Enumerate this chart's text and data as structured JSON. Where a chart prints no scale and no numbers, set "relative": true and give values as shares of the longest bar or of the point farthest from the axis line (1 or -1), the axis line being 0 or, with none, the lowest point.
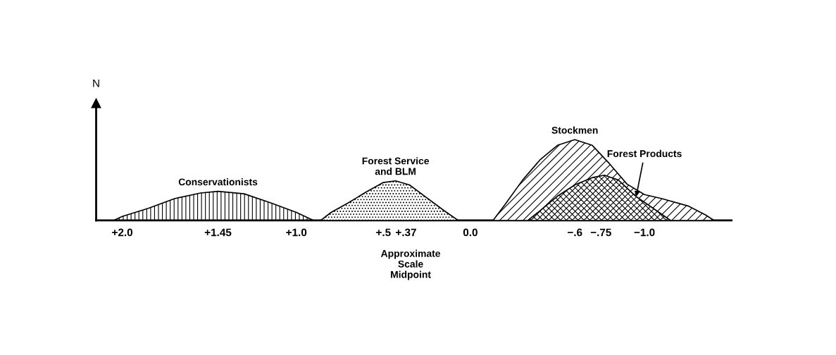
{
  "chart_data": {
    "type": "area",
    "relative": true,
    "ylabel": "N",
    "xlim": [
      2.15,
      -1.5
    ],
    "xticks": [
      {
        "value": 2.0,
        "label": "+2.0"
      },
      {
        "value": 1.45,
        "label": "+1.45"
      },
      {
        "value": 1.0,
        "label": "+1.0"
      },
      {
        "value": 0.5,
        "label": "+.5"
      },
      {
        "value": 0.37,
        "label": "+.37"
      },
      {
        "value": 0.0,
        "label": "0.0"
      },
      {
        "value": -0.6,
        "label": "−.6"
      },
      {
        "value": -0.75,
        "label": "−.75"
      },
      {
        "value": -1.0,
        "label": "−1.0"
      }
    ],
    "series": [
      {
        "name": "Conservationists",
        "color": "#000000",
        "x": [
          2.05,
          2.0,
          1.85,
          1.7,
          1.55,
          1.45,
          1.3,
          1.15,
          1.0,
          0.92,
          0.9
        ],
        "values": [
          0,
          0.05,
          0.15,
          0.27,
          0.34,
          0.36,
          0.33,
          0.22,
          0.1,
          0.02,
          0
        ]
      },
      {
        "name": "Forest Service\nand BLM",
        "color": "#000000",
        "x": [
          0.86,
          0.8,
          0.7,
          0.6,
          0.5,
          0.43,
          0.35,
          0.25,
          0.15,
          0.07
        ],
        "values": [
          0,
          0.1,
          0.22,
          0.35,
          0.47,
          0.49,
          0.44,
          0.28,
          0.12,
          0
        ]
      },
      {
        "name": "Stockmen",
        "color": "#000000",
        "x": [
          -0.13,
          -0.2,
          -0.3,
          -0.4,
          -0.5,
          -0.6,
          -0.7,
          -0.8,
          -0.9,
          -1.0,
          -1.1,
          -1.25,
          -1.35,
          -1.4
        ],
        "values": [
          0,
          0.2,
          0.5,
          0.75,
          0.93,
          1.0,
          0.93,
          0.7,
          0.45,
          0.32,
          0.27,
          0.18,
          0.07,
          0
        ]
      },
      {
        "name": "Forest Products",
        "color": "#000000",
        "x": [
          -0.33,
          -0.4,
          -0.5,
          -0.6,
          -0.7,
          -0.77,
          -0.85,
          -0.95,
          -1.05,
          -1.15
        ],
        "values": [
          0,
          0.12,
          0.3,
          0.44,
          0.53,
          0.56,
          0.5,
          0.3,
          0.15,
          0
        ]
      }
    ],
    "annotations": [
      "Approximate\nScale\nMidpoint"
    ]
  }
}
